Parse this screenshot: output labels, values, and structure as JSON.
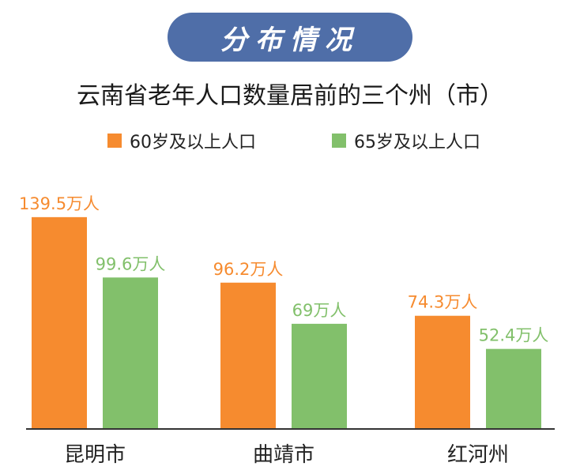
{
  "banner": {
    "label": "分布情况"
  },
  "colors": {
    "banner_bg": "#4f6ea8",
    "series_60": "#f68b2f",
    "series_65": "#82c06b",
    "axis": "#333333"
  },
  "chart_data": {
    "type": "bar",
    "title": "云南省老年人口数量居前的三个州（市）",
    "categories": [
      "昆明市",
      "曲靖市",
      "红河州"
    ],
    "series": [
      {
        "name": "60岁及以上人口",
        "values": [
          139.5,
          96.2,
          74.3
        ],
        "labels": [
          "139.5万人",
          "96.2万人",
          "74.3万人"
        ],
        "color": "#f68b2f"
      },
      {
        "name": "65岁及以上人口",
        "values": [
          99.6,
          69,
          52.4
        ],
        "labels": [
          "99.6万人",
          "69万人",
          "52.4万人"
        ],
        "color": "#82c06b"
      }
    ],
    "unit": "万人",
    "legend_position": "top",
    "grid": false
  }
}
